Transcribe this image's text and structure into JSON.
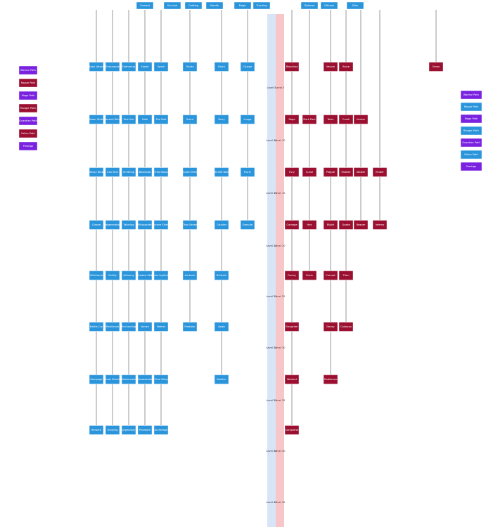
{
  "header": [
    "Combat",
    "Survival",
    "Crafting",
    "Stealth",
    "Magic",
    "Tracking",
    "Defense",
    "Offense",
    "Elite"
  ],
  "tiers": [
    "Level 5",
    "Level 10",
    "Level 15",
    "Level 20",
    "Level 25",
    "Level 30",
    "Level 35",
    "Level 40",
    "Level 45"
  ],
  "blue_columns": [
    {
      "nodes": [
        "Basic Attack",
        "Power Strike",
        "Heavy Blow",
        "Cleave",
        "Whirlwind",
        "Battle Cry",
        "Rampage",
        "Berserk"
      ]
    },
    {
      "nodes": [
        "Endurance",
        "Second Wind",
        "Iron Skin",
        "Regeneration",
        "Fortify",
        "Resilience",
        "Last Stand",
        "Undying"
      ]
    },
    {
      "nodes": [
        "Gathering",
        "Tool Use",
        "Smithing",
        "Tailoring",
        "Alchemy",
        "Enchanting",
        "Masterwork",
        "Legendary"
      ]
    },
    {
      "nodes": [
        "Sneak",
        "Hide",
        "Backstab",
        "Pickpocket",
        "Shadow Step",
        "Vanish",
        "Assassinate",
        "Phantom"
      ]
    },
    {
      "nodes": [
        "Spark",
        "Fire Bolt",
        "Frost Nova",
        "Arcane Shield",
        "Chain Lightning",
        "Meteor",
        "Time Warp",
        "Archmage"
      ]
    },
    {
      "nodes": [
        "Tracks",
        "Scent",
        "Hunter Mark",
        "Trap Sense",
        "Ambush",
        "Predator"
      ]
    },
    {
      "nodes": [
        "Block",
        "Parry",
        "Shield Wall",
        "Counter",
        "Bulwark",
        "Aegis",
        "Bastion"
      ]
    },
    {
      "nodes": [
        "Charge",
        "Lunge",
        "Flurry",
        "Execute"
      ]
    }
  ],
  "red_columns": [
    {
      "nodes": [
        "Bloodlust",
        "Rage",
        "Fury",
        "Carnage",
        "Frenzy",
        "Slaughter",
        "Warlord",
        "Conqueror"
      ]
    },
    {
      "nodes": [
        "Dark Pact",
        "Curse",
        "Hex",
        "Drain"
      ]
    },
    {
      "nodes": [
        "Venom",
        "Toxin",
        "Plague",
        "Blight",
        "Corrupt",
        "Decay",
        "Pestilence"
      ]
    },
    {
      "nodes": [
        "Brute",
        "Crush",
        "Shatter",
        "Quake",
        "Titan",
        "Colossus"
      ]
    },
    {
      "nodes": [
        "Hunter",
        "Stalker",
        "Reaper"
      ]
    },
    {
      "nodes": [
        "Ember",
        "Inferno"
      ]
    },
    {
      "nodes": [
        "Omen"
      ]
    }
  ],
  "legend": [
    "Warrior Path",
    "Rogue Path",
    "Mage Path",
    "Ranger Path",
    "Guardian Path",
    "Fallen Path",
    "Prestige"
  ]
}
